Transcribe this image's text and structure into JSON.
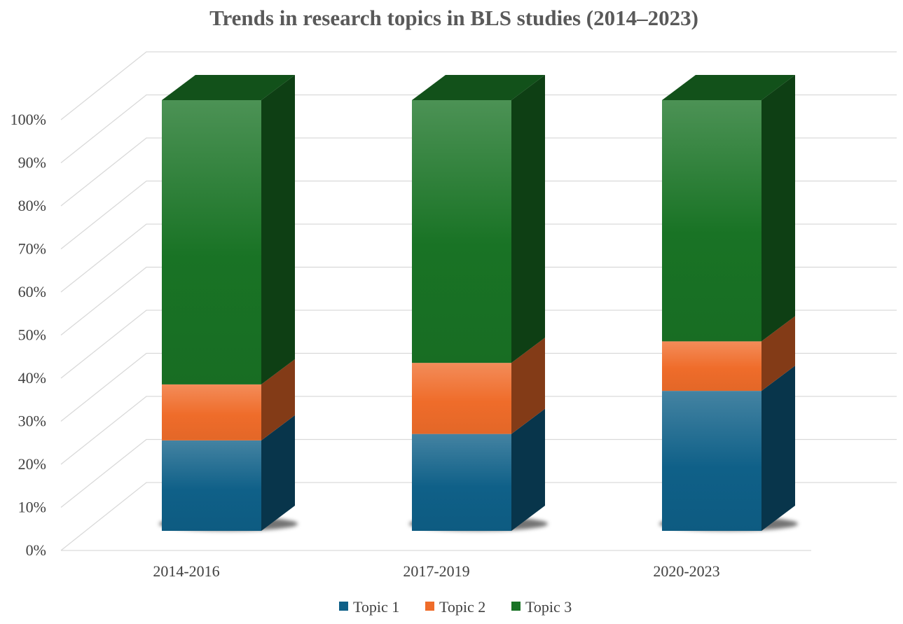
{
  "chart_data": {
    "type": "bar",
    "stacked": true,
    "percent": true,
    "three_d": true,
    "title": "Trends in research topics in BLS studies (2014–2023)",
    "xlabel": "",
    "ylabel": "",
    "categories": [
      "2014-2016",
      "2017-2019",
      "2020-2023"
    ],
    "series": [
      {
        "name": "Topic 1",
        "values": [
          21,
          22.5,
          32.5
        ],
        "color": "#0f6088"
      },
      {
        "name": "Topic 2",
        "values": [
          13,
          16.5,
          11.5
        ],
        "color": "#ef6c2a"
      },
      {
        "name": "Topic 3",
        "values": [
          66,
          61,
          56
        ],
        "color": "#197325"
      }
    ],
    "ylim": [
      0,
      100
    ],
    "yticks": [
      0,
      10,
      20,
      30,
      40,
      50,
      60,
      70,
      80,
      90,
      100
    ],
    "ytick_labels": [
      "0%",
      "10%",
      "20%",
      "30%",
      "40%",
      "50%",
      "60%",
      "70%",
      "80%",
      "90%",
      "100%"
    ],
    "grid": true,
    "legend_position": "bottom"
  }
}
